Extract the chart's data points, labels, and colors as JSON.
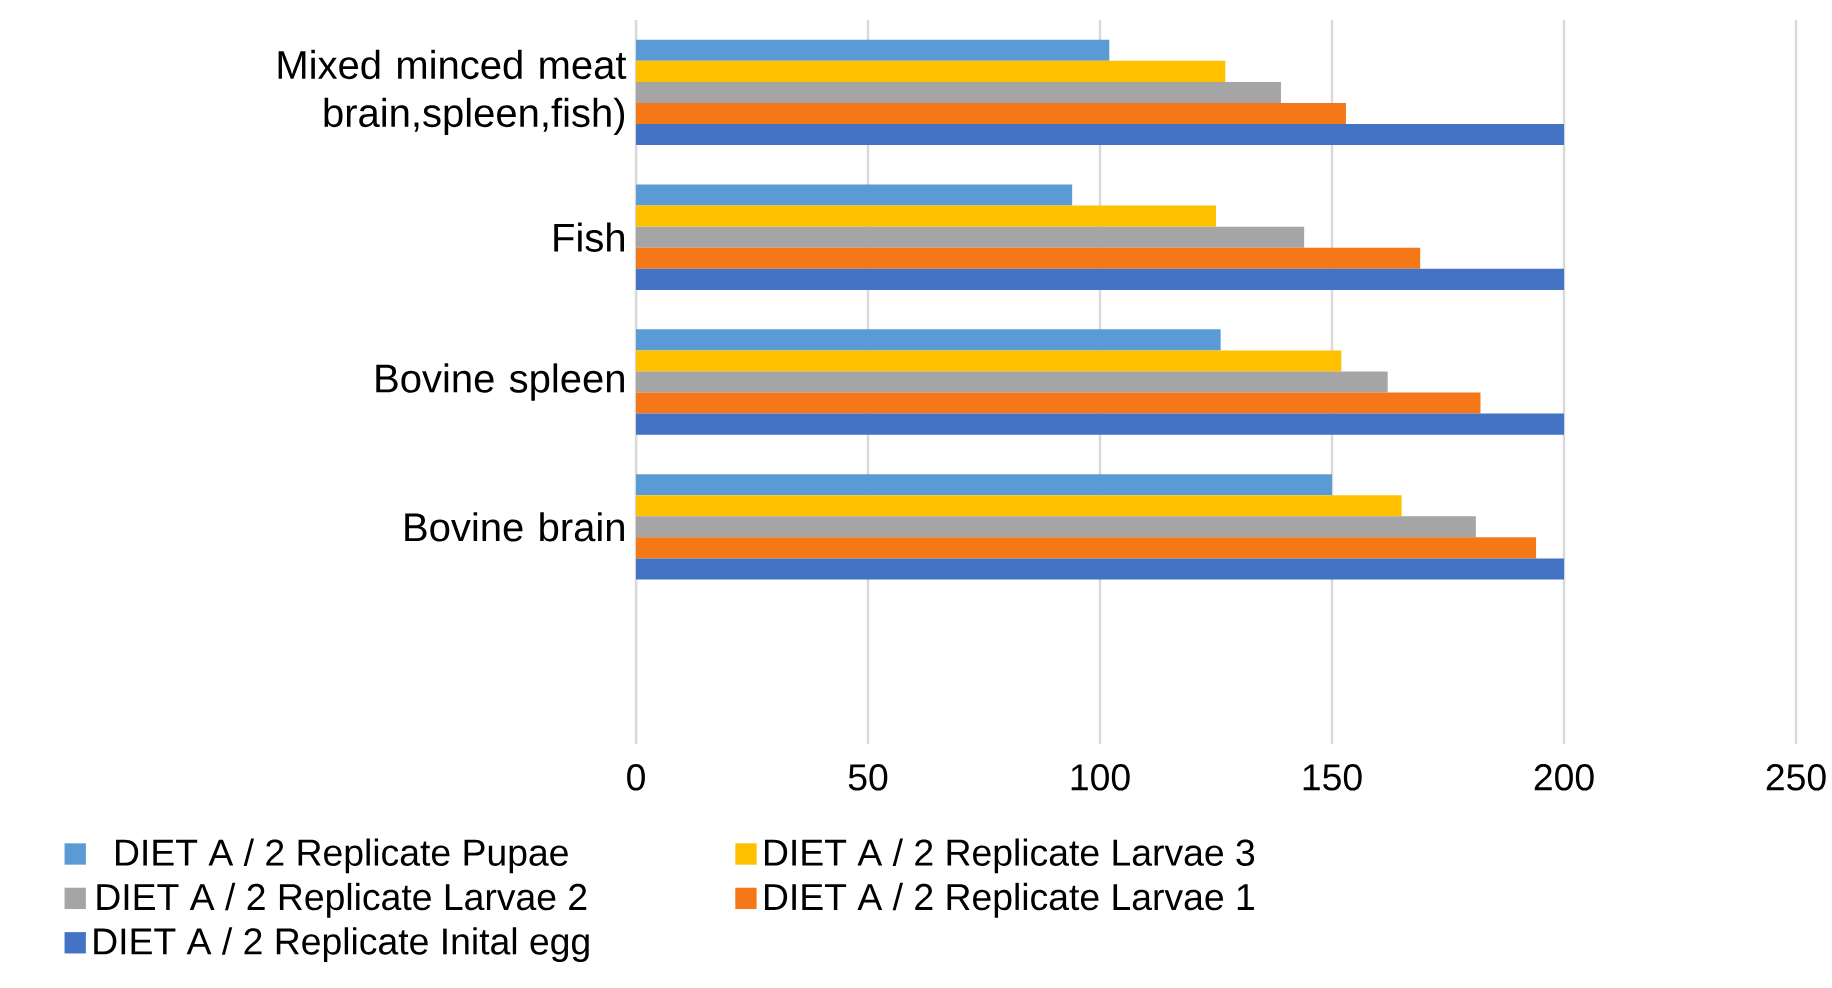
{
  "chart_data": {
    "type": "bar",
    "orientation": "horizontal",
    "categories": [
      "Mixed minced meat brain,spleen,fish)",
      "Fish",
      "Bovine spleen",
      "Bovine brain",
      null
    ],
    "series": [
      {
        "name": "DIET A / 2 Replicate  Pupae",
        "color": "#5b9bd5",
        "values": [
          102,
          94,
          126,
          150,
          null
        ]
      },
      {
        "name": "DIET A / 2 Replicate  Larvae 3",
        "color": "#ffc000",
        "values": [
          127,
          125,
          152,
          165,
          null
        ]
      },
      {
        "name": "DIET A / 2 Replicate  Larvae 2",
        "color": "#a5a5a5",
        "values": [
          139,
          144,
          162,
          181,
          null
        ]
      },
      {
        "name": "DIET A / 2 Replicate  Larvae 1",
        "color": "#f47718",
        "values": [
          153,
          169,
          182,
          194,
          null
        ]
      },
      {
        "name": "DIET A / 2 Replicate  Inital egg",
        "color": "#4472c4",
        "values": [
          200,
          200,
          200,
          200,
          null
        ]
      }
    ],
    "xlim": [
      0,
      250
    ],
    "xticks": [
      0,
      50,
      100,
      150,
      200,
      250
    ],
    "grid": "x",
    "legend": "bottom"
  }
}
